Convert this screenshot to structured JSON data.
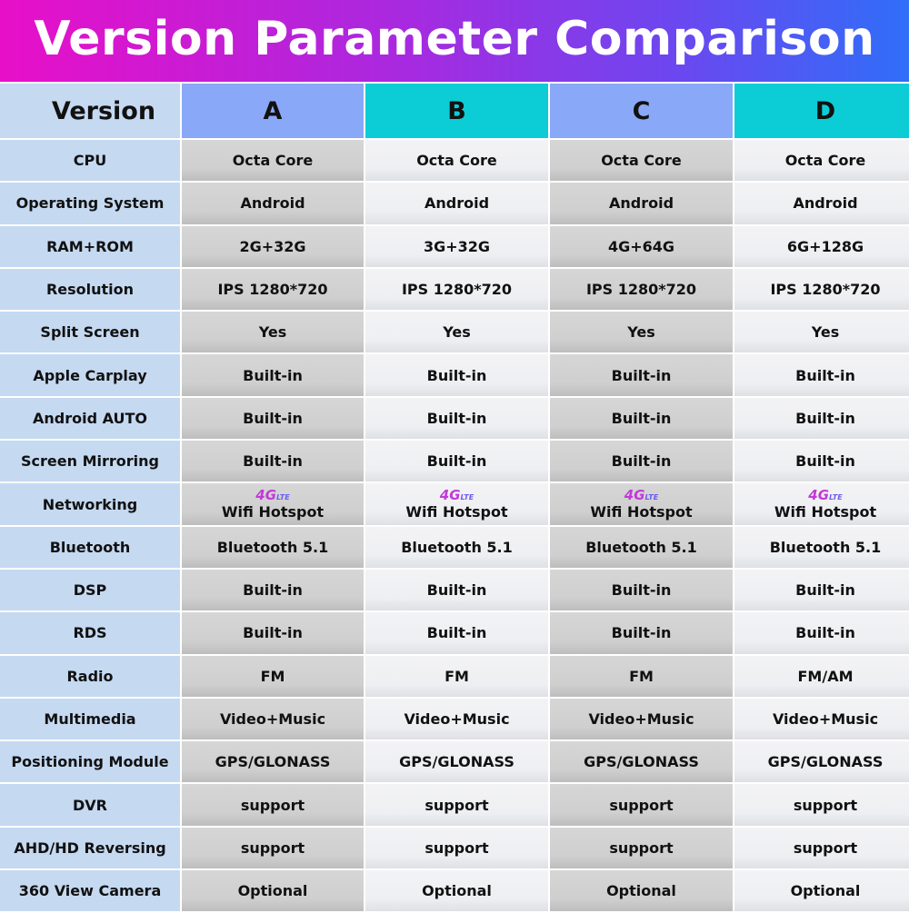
{
  "title": "Version Parameter Comparison",
  "header": {
    "label": "Version",
    "versions": [
      "A",
      "B",
      "C",
      "D"
    ]
  },
  "rows": [
    {
      "label": "CPU",
      "values": [
        "Octa Core",
        "Octa Core",
        "Octa Core",
        "Octa Core"
      ]
    },
    {
      "label": "Operating System",
      "values": [
        "Android",
        "Android",
        "Android",
        "Android"
      ]
    },
    {
      "label": "RAM+ROM",
      "values": [
        "2G+32G",
        "3G+32G",
        "4G+64G",
        "6G+128G"
      ]
    },
    {
      "label": "Resolution",
      "values": [
        "IPS 1280*720",
        "IPS 1280*720",
        "IPS 1280*720",
        "IPS 1280*720"
      ]
    },
    {
      "label": "Split Screen",
      "values": [
        "Yes",
        "Yes",
        "Yes",
        "Yes"
      ]
    },
    {
      "label": "Apple Carplay",
      "values": [
        "Built-in",
        "Built-in",
        "Built-in",
        "Built-in"
      ]
    },
    {
      "label": "Android AUTO",
      "values": [
        "Built-in",
        "Built-in",
        "Built-in",
        "Built-in"
      ]
    },
    {
      "label": "Screen Mirroring",
      "values": [
        "Built-in",
        "Built-in",
        "Built-in",
        "Built-in"
      ]
    },
    {
      "label": "Networking",
      "badge": "4G LTE",
      "values": [
        "Wifi Hotspot",
        "Wifi Hotspot",
        "Wifi Hotspot",
        "Wifi Hotspot"
      ]
    },
    {
      "label": "Bluetooth",
      "values": [
        "Bluetooth 5.1",
        "Bluetooth 5.1",
        "Bluetooth 5.1",
        "Bluetooth 5.1"
      ]
    },
    {
      "label": "DSP",
      "values": [
        "Built-in",
        "Built-in",
        "Built-in",
        "Built-in"
      ]
    },
    {
      "label": "RDS",
      "values": [
        "Built-in",
        "Built-in",
        "Built-in",
        "Built-in"
      ]
    },
    {
      "label": "Radio",
      "values": [
        "FM",
        "FM",
        "FM",
        "FM/AM"
      ]
    },
    {
      "label": "Multimedia",
      "values": [
        "Video+Music",
        "Video+Music",
        "Video+Music",
        "Video+Music"
      ]
    },
    {
      "label": "Positioning Module",
      "values": [
        "GPS/GLONASS",
        "GPS/GLONASS",
        "GPS/GLONASS",
        "GPS/GLONASS"
      ]
    },
    {
      "label": "DVR",
      "values": [
        "support",
        "support",
        "support",
        "support"
      ]
    },
    {
      "label": "AHD/HD Reversing",
      "values": [
        "support",
        "support",
        "support",
        "support"
      ]
    },
    {
      "label": "360 View Camera",
      "values": [
        "Optional",
        "Optional",
        "Optional",
        "Optional"
      ]
    }
  ]
}
